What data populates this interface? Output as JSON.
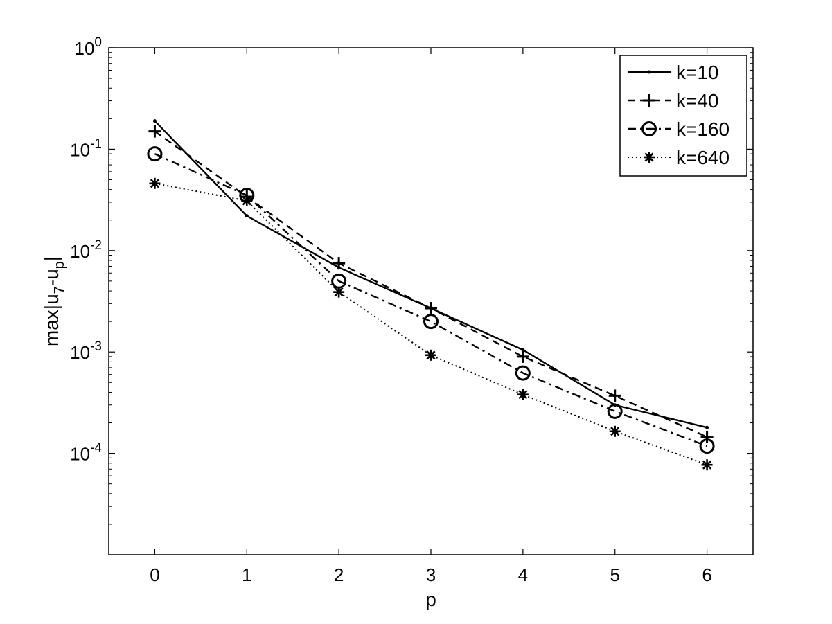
{
  "chart_data": {
    "type": "line",
    "xlabel": "p",
    "ylabel": "max|u_7-u_p|",
    "ylabel_parts": {
      "main": "max|u",
      "sub1": "7",
      "mid": "-u",
      "sub2": "p",
      "end": "|"
    },
    "x": [
      0,
      1,
      2,
      3,
      4,
      5,
      6
    ],
    "xlim": [
      -0.5,
      6.5
    ],
    "xticks": [
      0,
      1,
      2,
      3,
      4,
      5,
      6
    ],
    "ylim": [
      1e-05,
      1
    ],
    "yscale": "log",
    "yticks": [
      {
        "value": 0.0001,
        "base": "10",
        "exp": "-4"
      },
      {
        "value": 0.001,
        "base": "10",
        "exp": "-3"
      },
      {
        "value": 0.01,
        "base": "10",
        "exp": "-2"
      },
      {
        "value": 0.1,
        "base": "10",
        "exp": "-1"
      },
      {
        "value": 1,
        "base": "10",
        "exp": "0"
      }
    ],
    "grid": false,
    "legend_position": "top-right",
    "series": [
      {
        "name": "k=10",
        "color": "#000000",
        "line": "solid",
        "marker": "dot",
        "values": [
          0.19,
          0.022,
          0.0068,
          0.0027,
          0.00105,
          0.0003,
          0.00018
        ]
      },
      {
        "name": "k=40",
        "color": "#000000",
        "line": "dashed",
        "marker": "plus",
        "values": [
          0.15,
          0.034,
          0.0075,
          0.0027,
          0.0009,
          0.00037,
          0.000145
        ]
      },
      {
        "name": "k=160",
        "color": "#000000",
        "line": "dashdot",
        "marker": "circle",
        "values": [
          0.09,
          0.035,
          0.005,
          0.002,
          0.00062,
          0.00026,
          0.000118
        ]
      },
      {
        "name": "k=640",
        "color": "#000000",
        "line": "dotted",
        "marker": "asterisk",
        "values": [
          0.046,
          0.031,
          0.0039,
          0.00093,
          0.00038,
          0.000165,
          7.7e-05
        ]
      }
    ]
  }
}
